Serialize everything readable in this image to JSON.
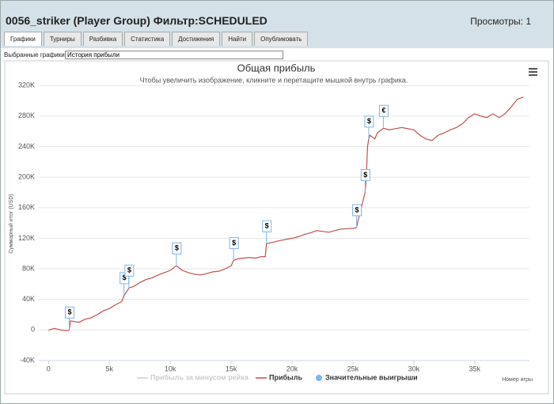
{
  "header": {
    "title": "0056_striker (Player Group) Фильтр:SCHEDULED",
    "views": "Просмотры: 1"
  },
  "tabs": [
    "Графики",
    "Турниры",
    "Разбивка",
    "Статистика",
    "Достижения",
    "Найти",
    "Опубликовать"
  ],
  "selector": {
    "label": "Выбранные графики:",
    "value": "История прибыли"
  },
  "chart_data": {
    "type": "line",
    "title": "Общая прибыль",
    "subtitle": "Чтобы увеличить изображение, кликните и перетащите мышкой внутрь графика.",
    "y_label": "Суммарный итог (USD)",
    "x_label": "Номер игры",
    "grid": true,
    "xlim": [
      -800,
      39500
    ],
    "ylim": [
      -40000,
      330000
    ],
    "xticks": [
      0,
      {
        "value": 5000,
        "label": "5k"
      },
      {
        "value": 10000,
        "label": "10k"
      },
      {
        "value": 15000,
        "label": "15k"
      },
      {
        "value": 20000,
        "label": "20k"
      },
      {
        "value": 25000,
        "label": "25k"
      },
      {
        "value": 30000,
        "label": "30k"
      },
      {
        "value": 35000,
        "label": "35k"
      }
    ],
    "yticks": [
      {
        "value": -40000,
        "label": "-40K"
      },
      0,
      {
        "value": 40000,
        "label": "40K"
      },
      {
        "value": 80000,
        "label": "80K"
      },
      {
        "value": 120000,
        "label": "120K"
      },
      {
        "value": 160000,
        "label": "160K"
      },
      {
        "value": 200000,
        "label": "200K"
      },
      {
        "value": 240000,
        "label": "240K"
      },
      {
        "value": 280000,
        "label": "280K"
      },
      {
        "value": 320000,
        "label": "320K"
      }
    ],
    "series": [
      {
        "name": "Прибыль за минусом рейка",
        "color": "#cccccc",
        "visible": false
      },
      {
        "name": "Прибыль",
        "color": "#c0504d",
        "visible": true,
        "x": [
          0,
          500,
          1000,
          1500,
          1700,
          1800,
          2500,
          3000,
          3500,
          4000,
          4500,
          5000,
          5500,
          6000,
          6200,
          6500,
          6600,
          7000,
          7500,
          8000,
          8500,
          9000,
          9500,
          10000,
          10500,
          11000,
          11500,
          12000,
          12500,
          13000,
          13500,
          14000,
          14500,
          15000,
          15200,
          15500,
          16000,
          16500,
          17000,
          17500,
          17800,
          17900,
          18500,
          19000,
          20000,
          20500,
          21000,
          21500,
          22000,
          23000,
          24000,
          25000,
          25300,
          25400,
          25500,
          26000,
          26100,
          26200,
          26300,
          26400,
          26800,
          27000,
          27500,
          28000,
          29000,
          30000,
          30500,
          31000,
          31500,
          32000,
          32500,
          33000,
          33500,
          34000,
          34500,
          35000,
          35500,
          36000,
          36500,
          37000,
          37500,
          38000,
          38500,
          39000
        ],
        "values": [
          0,
          2000,
          0,
          -1000,
          0,
          12000,
          10000,
          14000,
          16000,
          20000,
          25000,
          28000,
          33000,
          37000,
          45000,
          52000,
          55000,
          57000,
          62000,
          66000,
          68000,
          72000,
          75000,
          78000,
          84000,
          78000,
          75000,
          73000,
          72000,
          74000,
          76000,
          77000,
          80000,
          84000,
          91000,
          93000,
          94000,
          95000,
          94000,
          96000,
          96000,
          113000,
          115000,
          117000,
          120000,
          122000,
          125000,
          127000,
          130000,
          128000,
          132000,
          133000,
          134000,
          142000,
          148000,
          180000,
          200000,
          240000,
          250000,
          255000,
          250000,
          258000,
          264000,
          262000,
          265000,
          262000,
          255000,
          250000,
          248000,
          255000,
          258000,
          262000,
          265000,
          270000,
          278000,
          283000,
          280000,
          278000,
          283000,
          278000,
          283000,
          292000,
          302000,
          305000
        ]
      },
      {
        "name": "Значительные выигрыши",
        "color": "#7cb5ec",
        "visible": true,
        "x": [
          1700,
          6200,
          6600,
          10500,
          15200,
          17900,
          25300,
          26000,
          26300,
          27500
        ],
        "labels": [
          "$",
          "$",
          "$",
          "$",
          "$",
          "$",
          "$",
          "$",
          "$",
          "€"
        ]
      }
    ]
  }
}
